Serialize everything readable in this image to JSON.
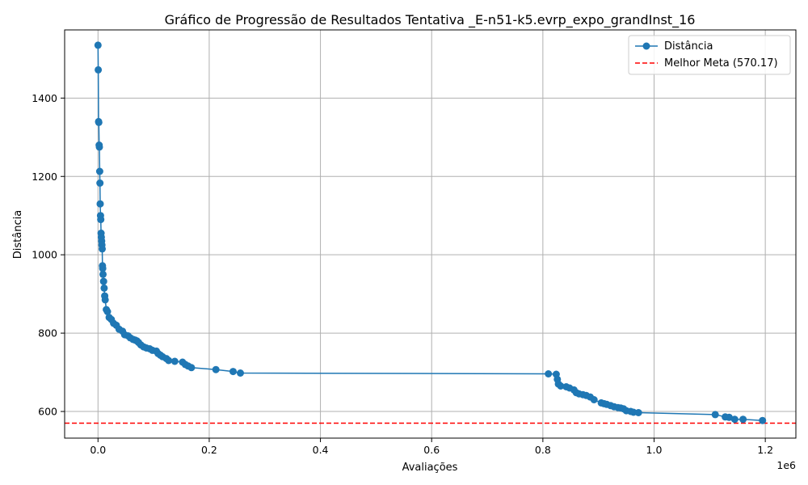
{
  "chart_data": {
    "type": "line",
    "title": "Gráfico de Progressão de Resultados Tentativa _E-n51-k5.evrp_expo_grandInst_16",
    "xlabel": "Avaliações",
    "ylabel": "Distância",
    "x_offset_label": "1e6",
    "xlim": [
      -60000,
      1255000
    ],
    "ylim": [
      532,
      1574
    ],
    "xticks": [
      0,
      0.2,
      0.4,
      0.6,
      0.8,
      1.0,
      1.2
    ],
    "xtick_labels": [
      "0.0",
      "0.2",
      "0.4",
      "0.6",
      "0.8",
      "1.0",
      "1.2"
    ],
    "yticks": [
      600,
      800,
      1000,
      1200,
      1400
    ],
    "ytick_labels": [
      "600",
      "800",
      "1000",
      "1200",
      "1400"
    ],
    "grid": true,
    "legend_position": "top-right",
    "colors": {
      "series": "#1f77b4",
      "reference": "#ff0000"
    },
    "series": [
      {
        "name": "Distância",
        "x": [
          0,
          500,
          1000,
          1500,
          2000,
          2500,
          3000,
          3500,
          4000,
          4500,
          5000,
          5500,
          6000,
          6500,
          7000,
          7500,
          8000,
          8500,
          9000,
          10000,
          11000,
          12000,
          13000,
          15000,
          17000,
          20000,
          24000,
          28000,
          33000,
          38000,
          44000,
          48000,
          54000,
          58000,
          63000,
          67000,
          70000,
          73000,
          77000,
          82000,
          87000,
          93000,
          98000,
          105000,
          108000,
          112000,
          116000,
          123000,
          127000,
          138000,
          152000,
          157000,
          162000,
          168000,
          212000,
          243000,
          256000,
          810000,
          824000,
          826000,
          828000,
          832000,
          842000,
          848000,
          856000,
          860000,
          865000,
          872000,
          878000,
          885000,
          892000,
          905000,
          910000,
          915000,
          922000,
          928000,
          935000,
          940000,
          945000,
          950000,
          958000,
          963000,
          972000,
          1110000,
          1128000,
          1135000,
          1145000,
          1160000,
          1195000
        ],
        "y": [
          1535,
          1472,
          1340,
          1338,
          1280,
          1275,
          1213,
          1183,
          1130,
          1100,
          1090,
          1055,
          1045,
          1035,
          1025,
          1015,
          972,
          965,
          950,
          932,
          915,
          895,
          885,
          860,
          855,
          840,
          835,
          825,
          820,
          810,
          805,
          796,
          793,
          788,
          784,
          782,
          780,
          776,
          770,
          765,
          762,
          760,
          756,
          754,
          748,
          744,
          740,
          735,
          730,
          728,
          726,
          720,
          716,
          712,
          707,
          702,
          698,
          696,
          695,
          682,
          670,
          665,
          663,
          660,
          655,
          648,
          645,
          643,
          641,
          637,
          630,
          622,
          620,
          618,
          615,
          612,
          610,
          609,
          607,
          602,
          600,
          598,
          597,
          592,
          586,
          585,
          580,
          580,
          577
        ]
      }
    ],
    "reference_lines": [
      {
        "name": "Melhor Meta (570.17)",
        "y": 570.17
      }
    ]
  }
}
